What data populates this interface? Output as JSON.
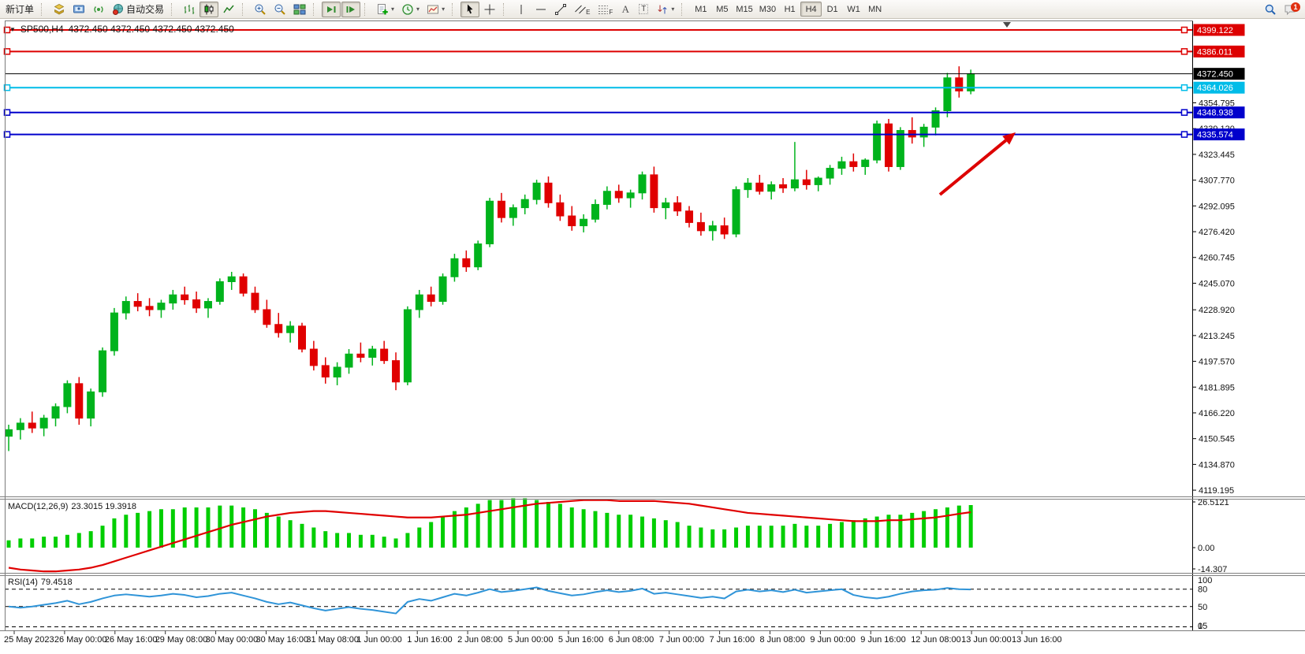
{
  "toolbar": {
    "new_order": "新订单",
    "auto_trading": "自动交易",
    "timeframes": [
      "M1",
      "M5",
      "M15",
      "M30",
      "H1",
      "H4",
      "D1",
      "W1",
      "MN"
    ],
    "active_timeframe": "H4",
    "notification_badge": "1",
    "tool_letters": {
      "channel": "E",
      "fibo": "F",
      "text": "A",
      "label": "T"
    }
  },
  "chart": {
    "title_symbol": "SP500,H4",
    "title_ohlc": "4372.450 4372.450 4372.450 4372.450"
  },
  "macd": {
    "title": "MACD(12,26,9)",
    "values": "23.3015 19.3918",
    "scale": [
      {
        "label": "26.5121",
        "value": 26.5121
      },
      {
        "label": "0.00",
        "value": 0
      },
      {
        "label": "-14.307",
        "value": -14.307
      }
    ]
  },
  "rsi": {
    "title": "RSI(14)",
    "value": "79.4518",
    "scale": [
      {
        "label": "100",
        "value": 100
      },
      {
        "label": "80",
        "value": 80
      },
      {
        "label": "50",
        "value": 50
      },
      {
        "label": "15",
        "value": 15
      },
      {
        "label": "0",
        "value": 0
      }
    ],
    "levels": [
      80,
      50,
      15
    ]
  },
  "chart_data": {
    "type": "candlestick",
    "symbol": "SP500",
    "period": "H4",
    "price_range": [
      4115.4,
      4404.4
    ],
    "colors": {
      "up": "#00b31c",
      "down": "#e00000",
      "macd_hist": "#00ce00",
      "macd_signal": "#e00000",
      "rsi_line": "#2f94d8",
      "level_dash": "#000000"
    },
    "price_ticks": [
      {
        "label": "4354.795",
        "value": 4354.795
      },
      {
        "label": "4339.120",
        "value": 4339.12
      },
      {
        "label": "4323.445",
        "value": 4323.445
      },
      {
        "label": "4307.770",
        "value": 4307.77
      },
      {
        "label": "4292.095",
        "value": 4292.095
      },
      {
        "label": "4276.420",
        "value": 4276.42
      },
      {
        "label": "4260.745",
        "value": 4260.745
      },
      {
        "label": "4245.070",
        "value": 4245.07
      },
      {
        "label": "4228.920",
        "value": 4228.92
      },
      {
        "label": "4213.245",
        "value": 4213.245
      },
      {
        "label": "4197.570",
        "value": 4197.57
      },
      {
        "label": "4181.895",
        "value": 4181.895
      },
      {
        "label": "4166.220",
        "value": 4166.22
      },
      {
        "label": "4150.545",
        "value": 4150.545
      },
      {
        "label": "4134.870",
        "value": 4134.87
      },
      {
        "label": "4119.195",
        "value": 4119.195
      }
    ],
    "horizontal_lines": [
      {
        "label": "4399.122",
        "value": 4399.122,
        "color": "#dd0000",
        "width": 2
      },
      {
        "label": "4386.011",
        "value": 4386.011,
        "color": "#dd0000",
        "width": 2
      },
      {
        "label": "4364.026",
        "value": 4364.026,
        "color": "#00bce8",
        "width": 2
      },
      {
        "label": "4348.938",
        "value": 4348.938,
        "color": "#0000cc",
        "width": 2
      },
      {
        "label": "4335.574",
        "value": 4335.574,
        "color": "#0000cc",
        "width": 2
      }
    ],
    "current_price": {
      "label": "4372.450",
      "value": 4372.45,
      "color": "#000000"
    },
    "time_labels": [
      "25 May 2023",
      "26 May 00:00",
      "26 May 16:00",
      "29 May 08:00",
      "30 May 00:00",
      "30 May 16:00",
      "31 May 08:00",
      "1 Jun 00:00",
      "1 Jun 16:00",
      "2 Jun 08:00",
      "5 Jun 00:00",
      "5 Jun 16:00",
      "6 Jun 08:00",
      "7 Jun 00:00",
      "7 Jun 16:00",
      "8 Jun 08:00",
      "9 Jun 00:00",
      "9 Jun 16:00",
      "12 Jun 08:00",
      "13 Jun 00:00",
      "13 Jun 16:00"
    ],
    "candles": [
      [
        4152,
        4159,
        4143,
        4156
      ],
      [
        4156,
        4163,
        4150,
        4160
      ],
      [
        4160,
        4167,
        4154,
        4157
      ],
      [
        4157,
        4165,
        4152,
        4163
      ],
      [
        4163,
        4172,
        4158,
        4170
      ],
      [
        4170,
        4186,
        4166,
        4184
      ],
      [
        4184,
        4188,
        4159,
        4163
      ],
      [
        4163,
        4181,
        4158,
        4179
      ],
      [
        4179,
        4206,
        4176,
        4204
      ],
      [
        4204,
        4230,
        4201,
        4227
      ],
      [
        4227,
        4237,
        4223,
        4234
      ],
      [
        4234,
        4239,
        4228,
        4231
      ],
      [
        4231,
        4236,
        4225,
        4229
      ],
      [
        4229,
        4235,
        4224,
        4233
      ],
      [
        4233,
        4241,
        4229,
        4238
      ],
      [
        4238,
        4243,
        4232,
        4235
      ],
      [
        4235,
        4240,
        4227,
        4230
      ],
      [
        4230,
        4236,
        4224,
        4234
      ],
      [
        4234,
        4248,
        4232,
        4246
      ],
      [
        4246,
        4252,
        4241,
        4249
      ],
      [
        4249,
        4251,
        4237,
        4239
      ],
      [
        4239,
        4243,
        4227,
        4229
      ],
      [
        4229,
        4235,
        4218,
        4220
      ],
      [
        4220,
        4227,
        4212,
        4215
      ],
      [
        4215,
        4222,
        4209,
        4219
      ],
      [
        4219,
        4221,
        4203,
        4205
      ],
      [
        4205,
        4210,
        4192,
        4195
      ],
      [
        4195,
        4200,
        4184,
        4188
      ],
      [
        4188,
        4197,
        4183,
        4194
      ],
      [
        4194,
        4205,
        4190,
        4202
      ],
      [
        4202,
        4209,
        4197,
        4200
      ],
      [
        4200,
        4207,
        4195,
        4205
      ],
      [
        4205,
        4210,
        4196,
        4198
      ],
      [
        4198,
        4203,
        4180,
        4185
      ],
      [
        4185,
        4231,
        4183,
        4229
      ],
      [
        4229,
        4241,
        4224,
        4238
      ],
      [
        4238,
        4243,
        4231,
        4234
      ],
      [
        4234,
        4251,
        4232,
        4249
      ],
      [
        4249,
        4263,
        4246,
        4260
      ],
      [
        4260,
        4265,
        4252,
        4255
      ],
      [
        4255,
        4271,
        4253,
        4269
      ],
      [
        4269,
        4297,
        4267,
        4295
      ],
      [
        4295,
        4300,
        4282,
        4285
      ],
      [
        4285,
        4293,
        4280,
        4291
      ],
      [
        4291,
        4299,
        4287,
        4296
      ],
      [
        4296,
        4308,
        4293,
        4306
      ],
      [
        4306,
        4310,
        4291,
        4294
      ],
      [
        4294,
        4299,
        4283,
        4286
      ],
      [
        4286,
        4292,
        4277,
        4280
      ],
      [
        4280,
        4287,
        4276,
        4284
      ],
      [
        4284,
        4296,
        4282,
        4293
      ],
      [
        4293,
        4304,
        4290,
        4301
      ],
      [
        4301,
        4305,
        4294,
        4297
      ],
      [
        4297,
        4302,
        4291,
        4300
      ],
      [
        4300,
        4313,
        4296,
        4311
      ],
      [
        4311,
        4316,
        4288,
        4291
      ],
      [
        4291,
        4297,
        4284,
        4294
      ],
      [
        4294,
        4298,
        4286,
        4289
      ],
      [
        4289,
        4292,
        4279,
        4282
      ],
      [
        4282,
        4288,
        4274,
        4277
      ],
      [
        4277,
        4283,
        4271,
        4280
      ],
      [
        4280,
        4285,
        4272,
        4275
      ],
      [
        4275,
        4304,
        4273,
        4302
      ],
      [
        4302,
        4309,
        4297,
        4306
      ],
      [
        4306,
        4311,
        4299,
        4301
      ],
      [
        4301,
        4307,
        4296,
        4305
      ],
      [
        4305,
        4309,
        4300,
        4303
      ],
      [
        4303,
        4331,
        4301,
        4308
      ],
      [
        4308,
        4314,
        4302,
        4305
      ],
      [
        4305,
        4310,
        4301,
        4309
      ],
      [
        4309,
        4317,
        4305,
        4315
      ],
      [
        4315,
        4322,
        4311,
        4319
      ],
      [
        4319,
        4324,
        4313,
        4316
      ],
      [
        4316,
        4321,
        4311,
        4320
      ],
      [
        4320,
        4344,
        4318,
        4342
      ],
      [
        4342,
        4345,
        4313,
        4316
      ],
      [
        4316,
        4340,
        4314,
        4338
      ],
      [
        4338,
        4346,
        4330,
        4334
      ],
      [
        4334,
        4342,
        4328,
        4340
      ],
      [
        4340,
        4352,
        4335,
        4350
      ],
      [
        4350,
        4373,
        4346,
        4370
      ],
      [
        4370,
        4377,
        4358,
        4362
      ],
      [
        4362,
        4375,
        4360,
        4372.45
      ]
    ],
    "indicators": {
      "macd": {
        "range": [
          -14.307,
          26.5121
        ],
        "histogram": [
          4,
          5,
          5,
          6,
          6,
          7,
          8,
          9,
          12,
          16,
          18,
          19,
          20,
          21,
          21,
          22,
          22,
          22,
          23,
          23,
          22,
          21,
          19,
          17,
          15,
          13,
          11,
          9,
          8,
          8,
          7,
          7,
          6,
          5,
          8,
          11,
          14,
          17,
          20,
          22,
          24,
          26,
          26,
          27,
          27,
          26,
          25,
          24,
          22,
          21,
          20,
          19,
          18,
          18,
          17,
          16,
          15,
          14,
          12,
          11,
          10,
          10,
          11,
          12,
          12,
          12,
          12,
          13,
          12,
          12,
          13,
          14,
          15,
          16,
          17,
          18,
          18,
          19,
          20,
          21,
          22,
          23,
          23.3
        ],
        "signal": [
          -11,
          -12,
          -12.5,
          -13,
          -13,
          -12.5,
          -12,
          -11,
          -9.5,
          -7.5,
          -5.5,
          -3.5,
          -1.5,
          0.5,
          2.5,
          4.5,
          6.5,
          8.5,
          10.5,
          12.5,
          14,
          15.5,
          17,
          18,
          19,
          19.5,
          20,
          20,
          19.5,
          19,
          18.5,
          18,
          17.5,
          17,
          16.5,
          16.5,
          16.5,
          17,
          17.5,
          18,
          19,
          20,
          21,
          22,
          23,
          24,
          24.5,
          25,
          25.5,
          26,
          26,
          26,
          25.5,
          25.5,
          25.5,
          25.5,
          25,
          24.5,
          24,
          23,
          22,
          21,
          20,
          19,
          18.5,
          18,
          17.5,
          17,
          16.5,
          16,
          15.5,
          15,
          14.5,
          14.5,
          14.5,
          15,
          15,
          15.5,
          16,
          16.5,
          17.5,
          18.5,
          19.39
        ]
      },
      "rsi": {
        "range": [
          0,
          100
        ],
        "values": [
          50,
          48,
          50,
          53,
          56,
          60,
          54,
          58,
          64,
          69,
          71,
          69,
          67,
          69,
          72,
          70,
          66,
          68,
          72,
          74,
          69,
          64,
          58,
          54,
          57,
          52,
          47,
          43,
          46,
          49,
          46,
          44,
          41,
          38,
          58,
          63,
          60,
          66,
          72,
          69,
          74,
          80,
          75,
          77,
          80,
          83,
          77,
          73,
          69,
          71,
          75,
          78,
          75,
          77,
          81,
          72,
          74,
          71,
          68,
          65,
          67,
          64,
          76,
          79,
          76,
          78,
          75,
          79,
          74,
          76,
          78,
          80,
          70,
          66,
          64,
          67,
          72,
          76,
          78,
          79,
          82,
          80,
          79.45
        ]
      }
    },
    "annotations": [
      {
        "type": "arrow",
        "color": "#dd0000",
        "from": [
          1192,
          247
        ],
        "to": [
          1288,
          168
        ]
      }
    ]
  }
}
